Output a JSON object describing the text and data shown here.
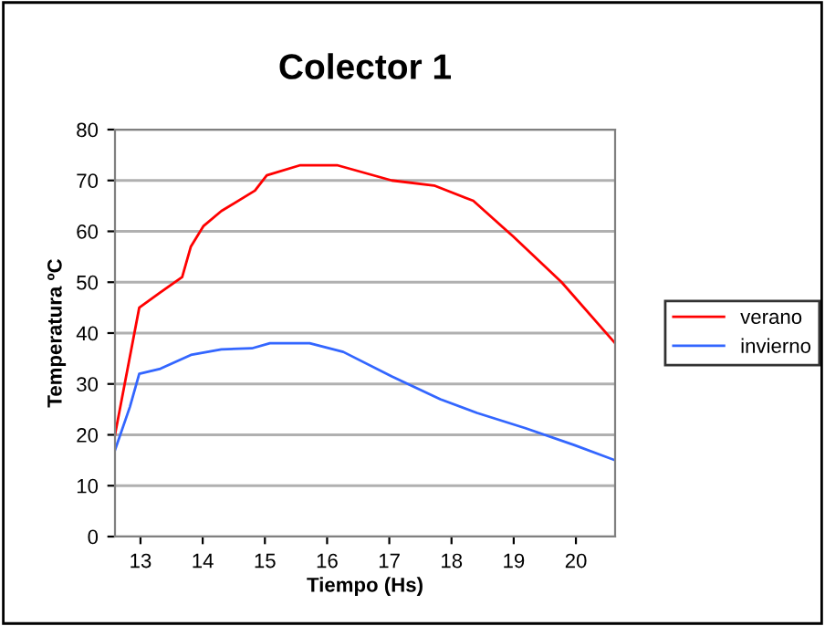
{
  "chart_data": {
    "type": "line",
    "title": "Colector 1",
    "xlabel": "Tiempo (Hs)",
    "ylabel": "Temperatura ºC",
    "series": [
      {
        "name": "verano",
        "color": "#ff0000",
        "x": [
          12.59,
          12.98,
          13.32,
          13.67,
          13.81,
          14.01,
          14.3,
          14.84,
          15.03,
          15.57,
          16.16,
          17.04,
          17.72,
          18.35,
          18.99,
          19.77,
          20.63
        ],
        "values": [
          20,
          45,
          48,
          51,
          57,
          61,
          64,
          68,
          71,
          73,
          73,
          70,
          69,
          66,
          59,
          50,
          38
        ]
      },
      {
        "name": "invierno",
        "color": "#3366ff",
        "x": [
          12.59,
          12.83,
          12.98,
          13.32,
          13.81,
          14.3,
          14.79,
          15.08,
          15.72,
          16.26,
          17.04,
          17.82,
          18.41,
          19.19,
          19.97,
          20.63
        ],
        "values": [
          17,
          25.5,
          32,
          33,
          35.7,
          36.8,
          37,
          38,
          38,
          36.3,
          31.5,
          27,
          24.3,
          21.3,
          18,
          15
        ]
      }
    ],
    "xlim": [
      12.59,
      20.63
    ],
    "xticks": [
      13,
      14,
      15,
      16,
      17,
      18,
      19,
      20
    ],
    "ylim": [
      0,
      80
    ],
    "yticks": [
      0,
      10,
      20,
      30,
      40,
      50,
      60,
      70,
      80
    ],
    "grid": "y",
    "legend": "right",
    "marker": "none",
    "line_style": "solid"
  }
}
